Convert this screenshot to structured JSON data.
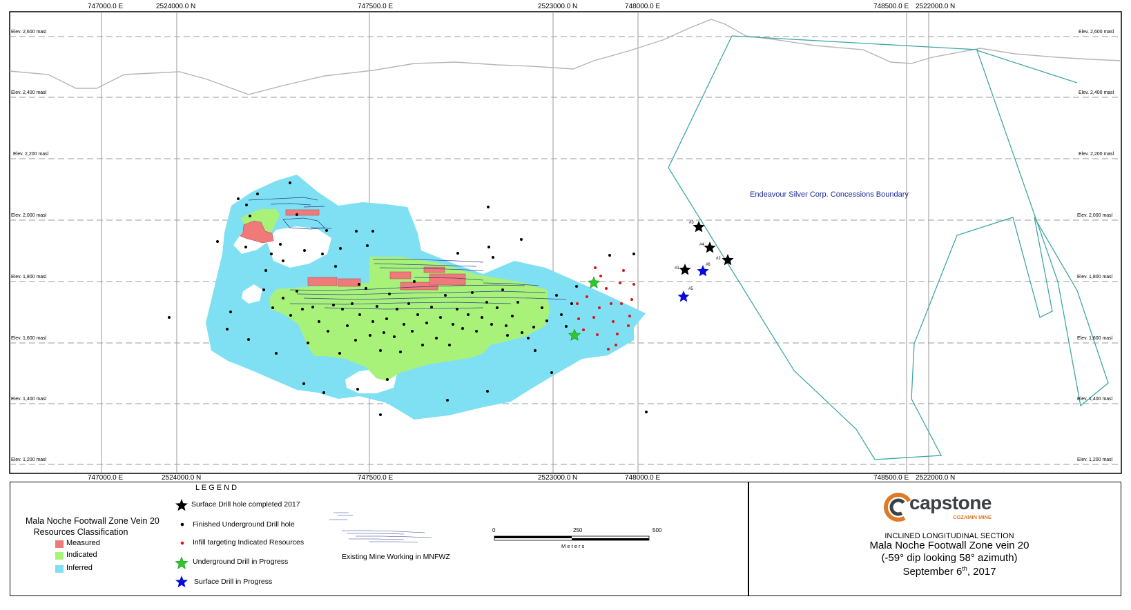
{
  "map": {
    "top_grid_labels": [
      "747000.0 E",
      "2524000.0 N",
      "747500.0 E",
      "2523000.0 N",
      "748000.0 E",
      "748500.0 E",
      "2522000.0 N"
    ],
    "bottom_grid_labels": [
      "747000.0 E",
      "2524000.0 N",
      "747500.0 E",
      "2523000.0 N",
      "748000.0 E",
      "748500.0 E",
      "2522000.0 N"
    ],
    "elevations": [
      "Elev. 2,600 masl",
      "Elev. 2,400 masl",
      "Elev. 2,200 masl",
      "Elev. 2,000 masl",
      "Elev. 1,800 masl",
      "Elev. 1,600 masl",
      "Elev. 1,400 masl",
      "Elev. 1,200 masl"
    ],
    "boundary_label": "Endeavour Silver Corp. Concessions Boundary",
    "drill_labels": [
      "#3",
      "#4",
      "#2",
      "#1",
      "#6",
      "#5"
    ]
  },
  "colors": {
    "measured": "#f07a7a",
    "indicated": "#a9f27a",
    "inferred": "#7fe0f3",
    "boundary": "#3fa6a6",
    "surface_completed": "#000000",
    "underground_hole": "#000000",
    "infill": "#e01010",
    "underground_progress": "#2ec82e",
    "surface_progress": "#0a0ad8"
  },
  "legend": {
    "header": "L E G E N D",
    "classification_title_1": "Mala Noche Footwall Zone Vein 20",
    "classification_title_2": "Resources Classification",
    "measured": "Measured",
    "indicated": "Indicated",
    "inferred": "Inferred",
    "surface_completed": "Surface Drill hole completed 2017",
    "underground_finished": "Finished  Underground Drill hole",
    "infill": "Infill targeting Indicated Resources",
    "underground_progress": "Underground Drill  in Progress",
    "surface_progress": "Surface Drill in Progress",
    "mine_working": "Existing Mine Working in MNFWZ",
    "scale_ticks": [
      "0",
      "250",
      "500"
    ],
    "scale_unit": "M e t e r s"
  },
  "title_block": {
    "logo_word": "capstone",
    "logo_sub": "COZAMIN MINE",
    "line1": "INCLINED LONGITUDINAL SECTION",
    "line2": "Mala Noche Footwall Zone vein 20",
    "line3": "(-59° dip looking 58° azimuth)",
    "date_prefix": "September 6",
    "date_sup": "th",
    "date_suffix": ", 2017"
  }
}
